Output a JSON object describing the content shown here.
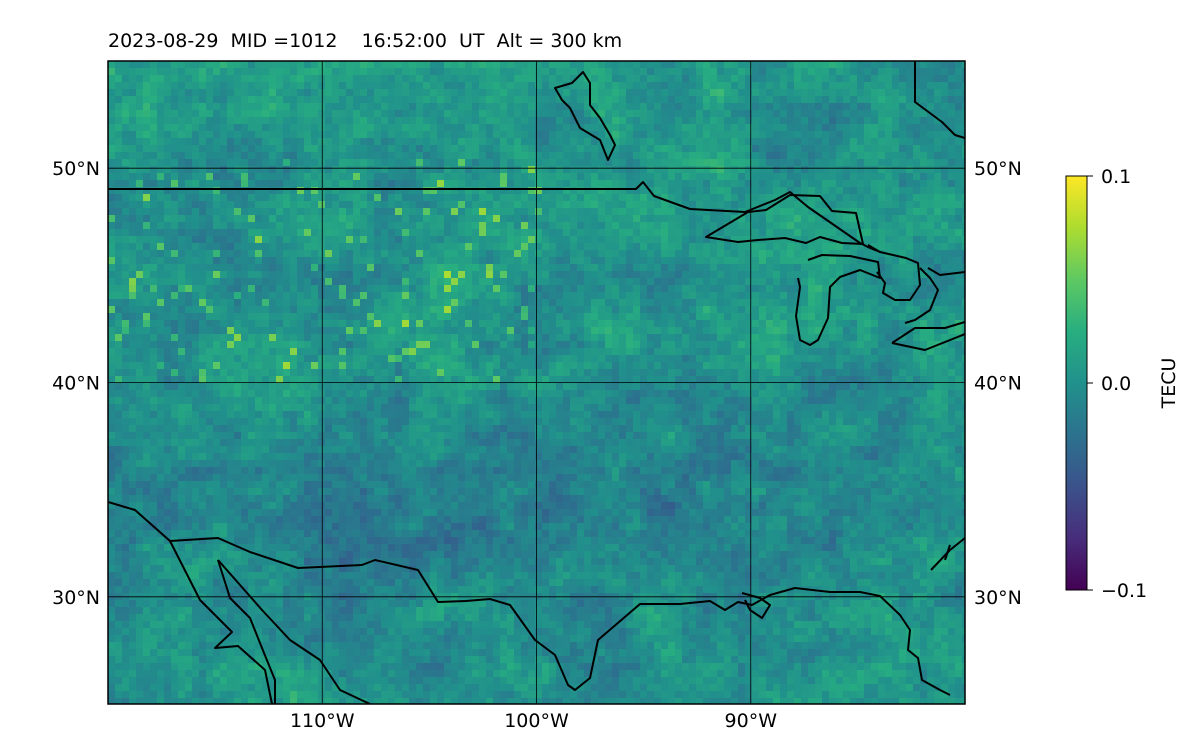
{
  "title": "2023-08-29  MID =1012    16:52:00  UT  Alt = 300 km",
  "map": {
    "extent": {
      "lon_min": -120,
      "lon_max": -80,
      "lat_min": 25,
      "lat_max": 55
    },
    "lon_ticks": [
      {
        "value": -110,
        "label": "110°W"
      },
      {
        "value": -100,
        "label": "100°W"
      },
      {
        "value": -90,
        "label": "90°W"
      }
    ],
    "lat_ticks": [
      {
        "value": 30,
        "label": "30°N"
      },
      {
        "value": 40,
        "label": "40°N"
      },
      {
        "value": 50,
        "label": "50°N"
      }
    ],
    "gridlines": true,
    "coastline_color": "#000000",
    "data_field": "TEC perturbation (viridis colormap)"
  },
  "colorbar": {
    "label": "TECU",
    "min": -0.1,
    "max": 0.1,
    "ticks": [
      {
        "value": 0.1,
        "label": "0.1"
      },
      {
        "value": 0.0,
        "label": "0.0"
      },
      {
        "value": -0.1,
        "label": "−0.1"
      }
    ],
    "colormap": "viridis"
  }
}
